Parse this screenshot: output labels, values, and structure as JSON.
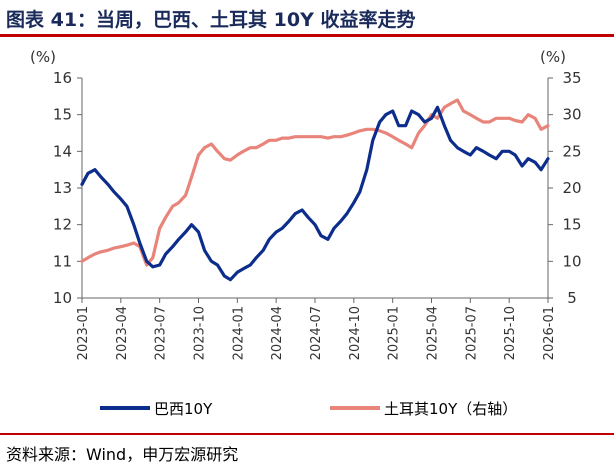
{
  "header": {
    "title": "图表 41：当周，巴西、土耳其 10Y 收益率走势"
  },
  "footer": {
    "source": "资料来源：Wind，申万宏源研究"
  },
  "colors": {
    "brazil": "#0d2d8c",
    "turkey": "#e8847a",
    "accent_rule": "#c00000",
    "title": "#1a2a5a"
  },
  "chart_data": {
    "type": "line",
    "title": "",
    "left_axis": {
      "unit_label": "(%)",
      "ylim": [
        10,
        16
      ],
      "ticks": [
        10,
        11,
        12,
        13,
        14,
        15,
        16
      ]
    },
    "right_axis": {
      "unit_label": "(%)",
      "ylim": [
        5,
        35
      ],
      "ticks": [
        5,
        10,
        15,
        20,
        25,
        30,
        35
      ]
    },
    "x_ticks": [
      "2023-01",
      "2023-04",
      "2023-07",
      "2023-10",
      "2024-01",
      "2024-04",
      "2024-07",
      "2024-10",
      "2025-01",
      "2025-04",
      "2025-07",
      "2025-10",
      "2026-01"
    ],
    "grid": false,
    "legend_position": "bottom",
    "series": [
      {
        "name": "巴西10Y",
        "axis": "left",
        "x": [
          "2023-01",
          "2023-01-15",
          "2023-02",
          "2023-02-15",
          "2023-03",
          "2023-03-15",
          "2023-04",
          "2023-04-15",
          "2023-05",
          "2023-05-15",
          "2023-06",
          "2023-06-15",
          "2023-07",
          "2023-07-15",
          "2023-08",
          "2023-08-15",
          "2023-09",
          "2023-09-15",
          "2023-10",
          "2023-10-15",
          "2023-11",
          "2023-11-15",
          "2023-12",
          "2023-12-15",
          "2024-01",
          "2024-01-15",
          "2024-02",
          "2024-02-15",
          "2024-03",
          "2024-03-15",
          "2024-04",
          "2024-04-15",
          "2024-05",
          "2024-05-15",
          "2024-06",
          "2024-06-15",
          "2024-07",
          "2024-07-15",
          "2024-08",
          "2024-08-15",
          "2024-09",
          "2024-09-15",
          "2024-10",
          "2024-10-15",
          "2024-11",
          "2024-11-15",
          "2024-12",
          "2024-12-15",
          "2025-01",
          "2025-01-15",
          "2025-02",
          "2025-02-15",
          "2025-03",
          "2025-03-15",
          "2025-04",
          "2025-04-15",
          "2025-05",
          "2025-05-15",
          "2025-06",
          "2025-06-15",
          "2025-07",
          "2025-07-15",
          "2025-08",
          "2025-08-15",
          "2025-09",
          "2025-09-15",
          "2025-10",
          "2025-10-15",
          "2025-11",
          "2025-11-15",
          "2025-12",
          "2025-12-15",
          "2026-01"
        ],
        "values": [
          13.1,
          13.4,
          13.5,
          13.3,
          13.1,
          12.9,
          12.7,
          12.5,
          12.0,
          11.5,
          11.0,
          10.85,
          10.9,
          11.2,
          11.4,
          11.6,
          11.8,
          12.0,
          11.8,
          11.3,
          11.0,
          10.9,
          10.6,
          10.5,
          10.7,
          10.8,
          10.9,
          11.1,
          11.3,
          11.6,
          11.8,
          11.9,
          12.1,
          12.3,
          12.4,
          12.2,
          12.0,
          11.7,
          11.6,
          11.9,
          12.1,
          12.3,
          12.6,
          12.9,
          13.5,
          14.3,
          14.8,
          15.0,
          15.1,
          14.7,
          14.7,
          15.1,
          15.0,
          14.8,
          14.9,
          15.2,
          14.7,
          14.3,
          14.1,
          14.0,
          13.9,
          14.1,
          14.0,
          13.9,
          13.8,
          14.0,
          14.0,
          13.9,
          13.6,
          13.8,
          13.7,
          13.5,
          13.8
        ]
      },
      {
        "name": "土耳其10Y（右轴）",
        "axis": "right",
        "x": [
          "2023-01",
          "2023-01-15",
          "2023-02",
          "2023-02-15",
          "2023-03",
          "2023-03-15",
          "2023-04",
          "2023-04-15",
          "2023-05",
          "2023-05-15",
          "2023-06",
          "2023-06-15",
          "2023-07",
          "2023-07-15",
          "2023-08",
          "2023-08-15",
          "2023-09",
          "2023-09-15",
          "2023-10",
          "2023-10-15",
          "2023-11",
          "2023-11-15",
          "2023-12",
          "2023-12-15",
          "2024-01",
          "2024-01-15",
          "2024-02",
          "2024-02-15",
          "2024-03",
          "2024-03-15",
          "2024-04",
          "2024-04-15",
          "2024-05",
          "2024-05-15",
          "2024-06",
          "2024-06-15",
          "2024-07",
          "2024-07-15",
          "2024-08",
          "2024-08-15",
          "2024-09",
          "2024-09-15",
          "2024-10",
          "2024-10-15",
          "2024-11",
          "2024-11-15",
          "2024-12",
          "2024-12-15",
          "2025-01",
          "2025-01-15",
          "2025-02",
          "2025-02-15",
          "2025-03",
          "2025-03-15",
          "2025-04",
          "2025-04-15",
          "2025-05",
          "2025-05-15",
          "2025-06",
          "2025-06-15",
          "2025-07",
          "2025-07-15",
          "2025-08",
          "2025-08-15",
          "2025-09",
          "2025-09-15",
          "2025-10",
          "2025-10-15",
          "2025-11",
          "2025-11-15",
          "2025-12",
          "2025-12-15",
          "2026-01"
        ],
        "values": [
          10.0,
          10.5,
          11.0,
          11.3,
          11.5,
          11.8,
          12.0,
          12.2,
          12.5,
          12.0,
          9.5,
          10.5,
          14.5,
          16.0,
          17.5,
          18.0,
          19.0,
          21.5,
          24.5,
          25.5,
          26.0,
          25.0,
          24.0,
          23.8,
          24.5,
          25.0,
          25.5,
          25.5,
          26.0,
          26.5,
          26.5,
          26.8,
          26.8,
          27.0,
          27.0,
          27.0,
          27.0,
          27.0,
          26.8,
          27.0,
          27.0,
          27.2,
          27.5,
          27.8,
          28.0,
          28.0,
          27.8,
          27.5,
          27.0,
          26.5,
          26.0,
          25.5,
          27.5,
          28.5,
          30.0,
          29.5,
          31.0,
          31.5,
          32.0,
          30.5,
          30.0,
          29.5,
          29.0,
          29.0,
          29.5,
          29.5,
          29.5,
          29.2,
          29.0,
          30.0,
          29.5,
          28.0,
          28.5
        ]
      }
    ]
  }
}
